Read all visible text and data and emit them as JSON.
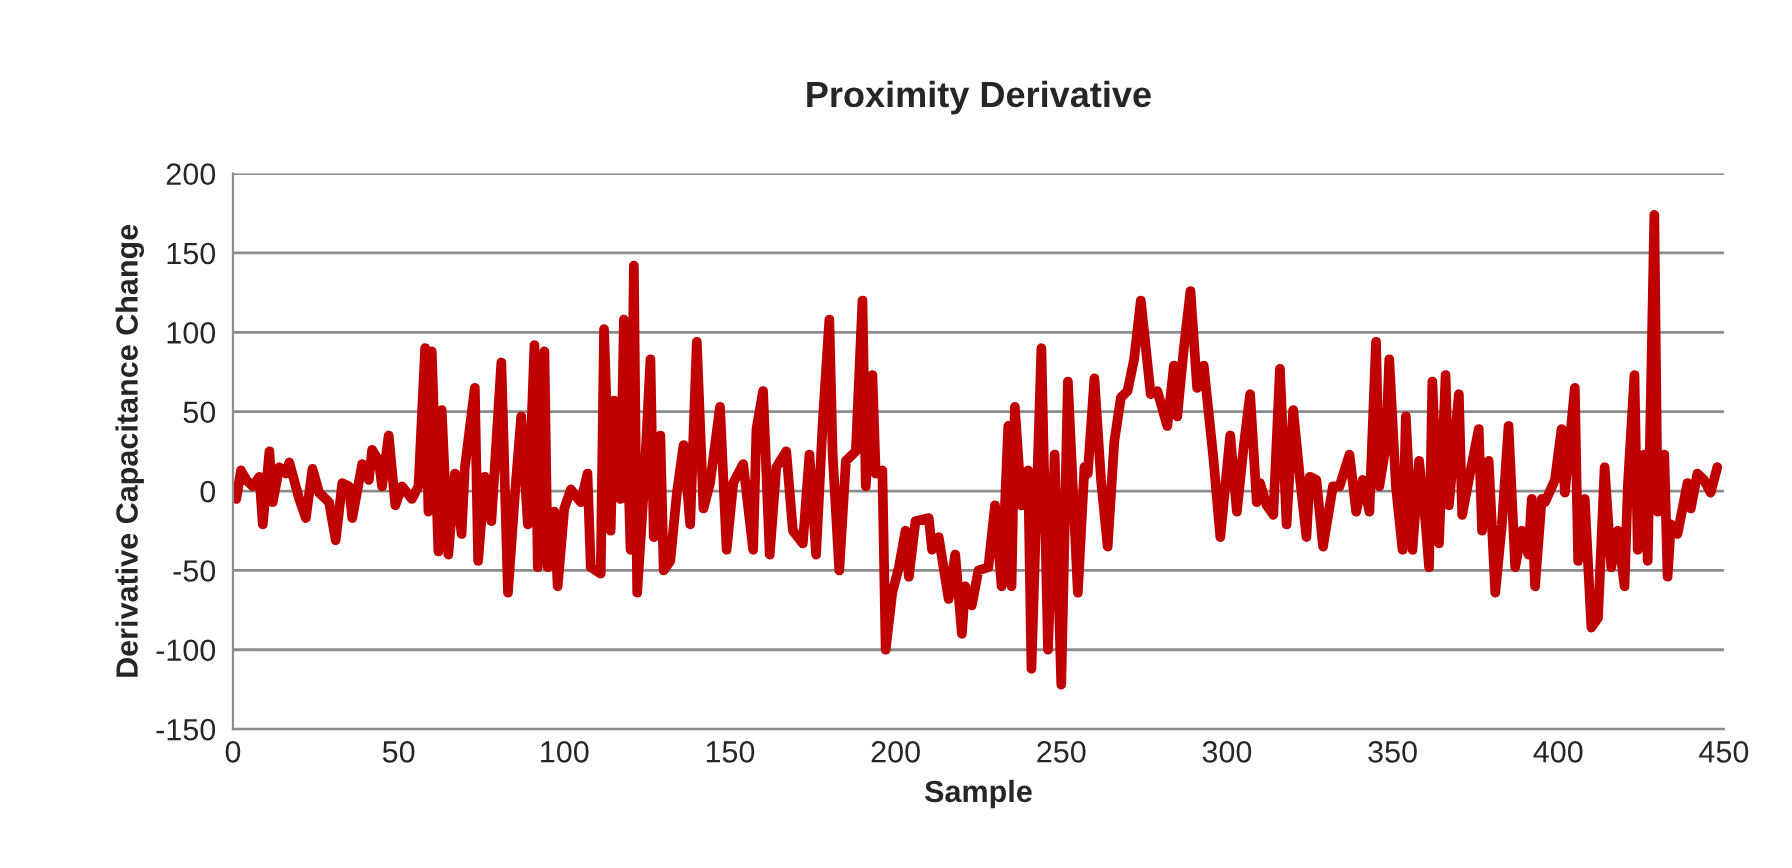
{
  "chart_data": {
    "type": "line",
    "title": "Proximity Derivative",
    "xlabel": "Sample",
    "ylabel": "Derivative Capacitance Change",
    "xlim": [
      0,
      450
    ],
    "xticks": [
      0,
      50,
      100,
      150,
      200,
      250,
      300,
      350,
      400,
      450
    ],
    "ylim": [
      -150,
      200
    ],
    "yticks": [
      -150,
      -100,
      -50,
      0,
      50,
      100,
      150,
      200
    ],
    "grid": "y",
    "legend": false,
    "marker": "none",
    "line_style": "solid",
    "series": [
      {
        "color": "#c00000",
        "x": [
          1,
          2.4,
          4,
          6,
          8,
          9,
          11,
          12,
          14,
          16,
          17,
          20,
          22,
          24,
          26,
          29,
          31,
          33,
          35,
          36,
          39,
          41,
          42,
          44,
          45,
          47,
          49,
          51,
          54,
          56,
          58,
          59,
          60,
          62,
          63,
          65,
          67,
          69,
          70,
          73,
          74,
          76,
          78,
          81,
          83,
          85,
          87,
          89,
          91,
          92,
          94,
          95,
          97,
          98,
          100,
          102,
          105,
          107,
          108,
          111,
          112,
          114,
          115,
          117,
          118,
          120,
          121,
          122,
          124,
          126,
          127,
          129,
          130,
          132,
          134,
          136,
          138,
          140,
          142,
          144,
          147,
          149,
          151,
          154,
          157,
          158,
          160,
          162,
          164,
          167,
          169,
          172,
          174,
          176,
          178,
          180,
          181,
          183,
          185,
          188,
          190,
          191,
          193,
          194,
          196,
          197,
          199,
          201,
          203,
          204,
          206,
          210,
          211,
          213,
          216,
          218,
          220,
          221,
          223,
          225,
          228,
          230,
          232,
          234,
          235,
          236,
          238,
          240,
          241,
          244,
          246,
          248,
          250,
          252,
          255,
          257,
          258,
          260,
          262,
          264,
          266,
          268,
          270,
          272,
          274,
          277,
          279,
          282,
          284,
          285,
          287,
          289,
          291,
          293,
          296,
          298,
          301,
          303,
          305,
          307,
          309,
          310,
          312,
          314,
          316,
          318,
          320,
          322,
          324,
          325,
          327,
          329,
          332,
          334,
          337,
          339,
          341,
          343,
          345,
          346,
          348,
          349,
          351,
          353,
          354,
          356,
          358,
          360,
          361,
          362,
          364,
          366,
          367,
          370,
          371,
          373,
          376,
          377,
          379,
          381,
          383,
          385,
          387,
          389,
          391,
          392,
          393,
          395,
          396,
          399,
          401,
          402,
          405,
          406,
          408,
          410,
          412,
          414,
          416,
          418,
          420,
          421,
          423,
          424,
          426,
          427,
          429,
          430,
          432,
          433,
          434,
          436,
          439,
          440,
          442,
          444,
          446,
          448
        ],
        "values": [
          -5,
          13,
          7,
          3,
          9,
          -21,
          25,
          -7,
          15,
          11,
          18,
          -5,
          -17,
          14,
          -1,
          -7,
          -31,
          5,
          3,
          -17,
          17,
          7,
          26,
          19,
          3,
          35,
          -9,
          3,
          -5,
          3,
          90,
          -13,
          88,
          -38,
          51,
          -40,
          11,
          -27,
          15,
          65,
          -44,
          9,
          -19,
          81,
          -64,
          -5,
          47,
          -21,
          92,
          -48,
          88,
          -48,
          -13,
          -60,
          -11,
          1,
          -7,
          11,
          -48,
          -52,
          102,
          -25,
          57,
          -5,
          108,
          -37,
          142,
          -64,
          1,
          83,
          -29,
          35,
          -50,
          -44,
          -1,
          29,
          -21,
          94,
          -11,
          5,
          53,
          -37,
          5,
          17,
          -37,
          39,
          63,
          -40,
          15,
          25,
          -25,
          -33,
          23,
          -40,
          43,
          108,
          23,
          -50,
          19,
          25,
          120,
          3,
          73,
          11,
          13,
          -100,
          -64,
          -48,
          -25,
          -54,
          -19,
          -17,
          -37,
          -29,
          -68,
          -40,
          -90,
          -60,
          -72,
          -50,
          -48,
          -9,
          -60,
          41,
          -60,
          53,
          -9,
          13,
          -112,
          90,
          -100,
          23,
          -122,
          69,
          -64,
          15,
          11,
          71,
          7,
          -35,
          31,
          59,
          63,
          83,
          120,
          61,
          63,
          41,
          79,
          47,
          90,
          126,
          65,
          79,
          19,
          -29,
          35,
          -13,
          27,
          61,
          -7,
          5,
          -9,
          -15,
          77,
          -21,
          51,
          9,
          -29,
          9,
          7,
          -35,
          3,
          3,
          23,
          -13,
          7,
          -13,
          94,
          3,
          29,
          83,
          3,
          -37,
          47,
          -37,
          19,
          -21,
          -48,
          69,
          -33,
          73,
          -9,
          61,
          -15,
          7,
          39,
          -25,
          19,
          -64,
          -21,
          41,
          -48,
          -25,
          -40,
          -5,
          -60,
          -5,
          -7,
          7,
          39,
          -1,
          65,
          -44,
          -5,
          -86,
          -80,
          15,
          -48,
          -25,
          -60,
          3,
          73,
          -37,
          23,
          -44,
          174,
          -13,
          23,
          -54,
          -21,
          -27,
          5,
          -11,
          11,
          7,
          -1,
          15
        ]
      }
    ]
  }
}
